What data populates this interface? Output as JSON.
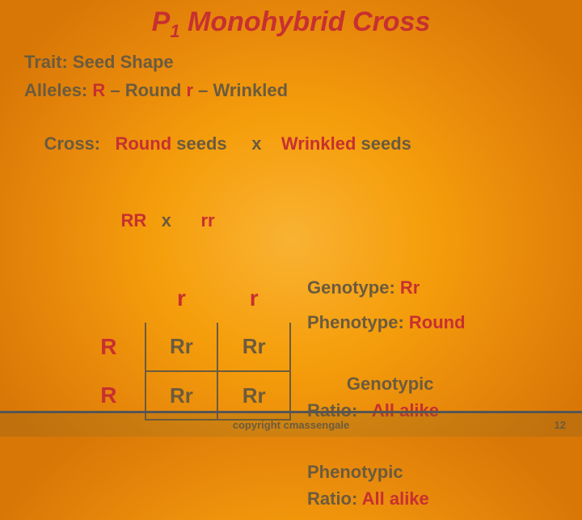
{
  "title_main": "P",
  "title_sub": "1",
  "title_rest": " Monohybrid Cross",
  "trait_label": "Trait: ",
  "trait_value": "Seed Shape",
  "alleles_label": "Alleles: ",
  "allele_R": "R",
  "allele_R_desc": " – Round ",
  "allele_r": "r",
  "allele_r_desc": " – Wrinkled",
  "cross_label": "Cross:   ",
  "cross_round": "Round",
  "cross_mid1": " seeds     x    ",
  "cross_wrinkled": "Wrinkled",
  "cross_mid2": " seeds",
  "cross_geno_RR": "RR",
  "cross_geno_x": "   x      ",
  "cross_geno_rr": "rr",
  "punnett": {
    "col1": "r",
    "col2": "r",
    "row1": "R",
    "row2": "R",
    "c11": "Rr",
    "c12": "Rr",
    "c21": "Rr",
    "c22": "Rr"
  },
  "results": {
    "geno_label": "Genotype: ",
    "geno_val": "Rr",
    "pheno_label": "Phenotype: ",
    "pheno_val": "Round",
    "gratio_label1": "Genotypic",
    "gratio_label2": "Ratio:   ",
    "gratio_val": "All alike",
    "pratio_label1": "Phenotypic",
    "pratio_label2": "Ratio: ",
    "pratio_val": "All alike"
  },
  "footer": "copyright cmassengale",
  "page": "12",
  "colors": {
    "title": "#c73030",
    "body": "#6b5b3e",
    "red": "#c73030",
    "bg_inner": "#f9b233",
    "bg_outer": "#d97706"
  }
}
